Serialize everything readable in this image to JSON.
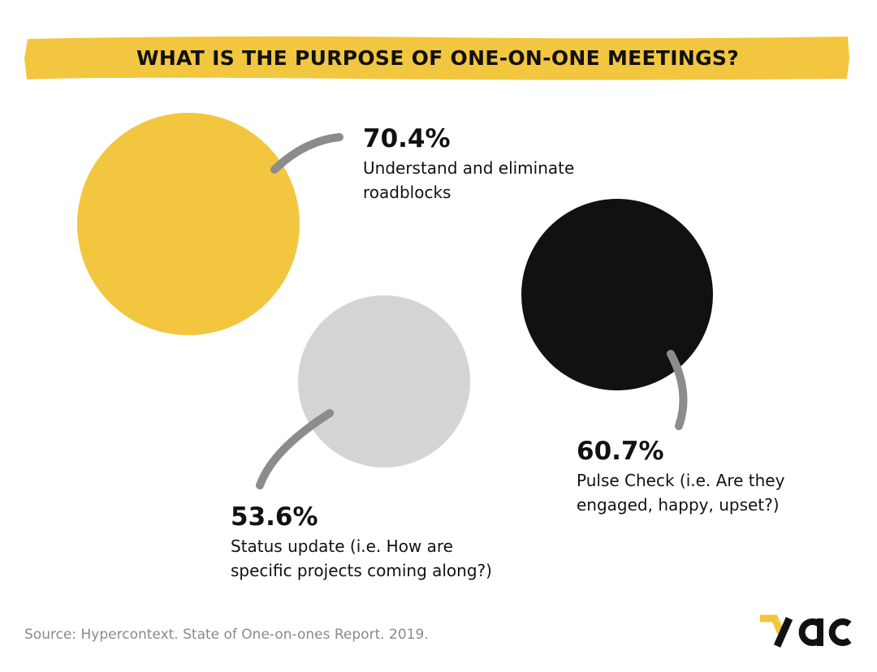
{
  "title": "WHAT IS THE PURPOSE OF ONE-ON-ONE MEETINGS?",
  "source": "Source: Hypercontext. State of One-on-ones Report. 2019.",
  "logo_text": "yac",
  "colors": {
    "yellow": "#F3C63F",
    "black": "#111111",
    "light_gray": "#D3D4D6",
    "connector": "#8C8C8C"
  },
  "chart_data": {
    "type": "bubble",
    "title": "WHAT IS THE PURPOSE OF ONE-ON-ONE MEETINGS?",
    "unit": "%",
    "items": [
      {
        "value": 70.4,
        "value_label": "70.4%",
        "label": "Understand and eliminate roadblocks",
        "color": "#F3C63F"
      },
      {
        "value": 60.7,
        "value_label": "60.7%",
        "label": "Pulse Check (i.e. Are they engaged, happy, upset?)",
        "color": "#111111"
      },
      {
        "value": 53.6,
        "value_label": "53.6%",
        "label": "Status update (i.e. How are specific projects coming along?)",
        "color": "#D3D4D6"
      }
    ]
  },
  "labels": [
    {
      "pct": "70.4%",
      "line1": "Understand and eliminate",
      "line2": "roadblocks"
    },
    {
      "pct": "60.7%",
      "line1": "Pulse Check (i.e. Are they",
      "line2": "engaged, happy, upset?)"
    },
    {
      "pct": "53.6%",
      "line1": "Status update (i.e. How are",
      "line2": "specific projects coming along?)"
    }
  ]
}
